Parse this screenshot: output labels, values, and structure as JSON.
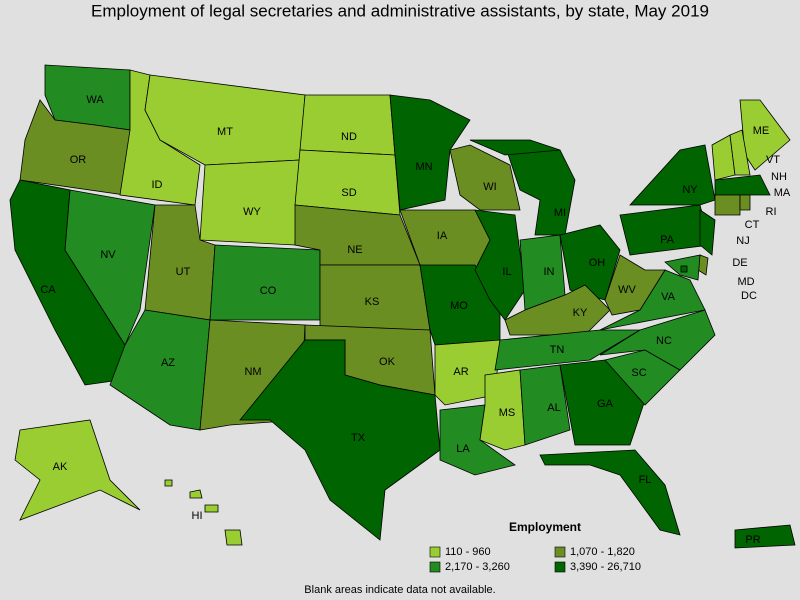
{
  "title": "Employment of legal secretaries and administrative assistants, by state, May 2019",
  "legend": {
    "title": "Employment",
    "items": [
      {
        "label": "110 - 960",
        "color": "#9acd32"
      },
      {
        "label": "1,070 - 1,820",
        "color": "#6b8e23"
      },
      {
        "label": "2,170 - 3,260",
        "color": "#228b22"
      },
      {
        "label": "3,390 - 26,710",
        "color": "#006400"
      }
    ]
  },
  "states": [
    {
      "label": "WA",
      "legend_item": 2
    },
    {
      "label": "OR",
      "legend_item": 1
    },
    {
      "label": "CA",
      "legend_item": 3
    },
    {
      "label": "NV",
      "legend_item": 2
    },
    {
      "label": "ID",
      "legend_item": 0
    },
    {
      "label": "MT",
      "legend_item": 0
    },
    {
      "label": "WY",
      "legend_item": 0
    },
    {
      "label": "UT",
      "legend_item": 1
    },
    {
      "label": "AZ",
      "legend_item": 2
    },
    {
      "label": "CO",
      "legend_item": 2
    },
    {
      "label": "NM",
      "legend_item": 1
    },
    {
      "label": "ND",
      "legend_item": 0
    },
    {
      "label": "SD",
      "legend_item": 0
    },
    {
      "label": "NE",
      "legend_item": 1
    },
    {
      "label": "KS",
      "legend_item": 1
    },
    {
      "label": "OK",
      "legend_item": 1
    },
    {
      "label": "TX",
      "legend_item": 3
    },
    {
      "label": "MN",
      "legend_item": 3
    },
    {
      "label": "IA",
      "legend_item": 1
    },
    {
      "label": "MO",
      "legend_item": 3
    },
    {
      "label": "AR",
      "legend_item": 0
    },
    {
      "label": "LA",
      "legend_item": 2
    },
    {
      "label": "WI",
      "legend_item": 1
    },
    {
      "label": "IL",
      "legend_item": 3
    },
    {
      "label": "MI",
      "legend_item": 3
    },
    {
      "label": "IN",
      "legend_item": 2
    },
    {
      "label": "OH",
      "legend_item": 3
    },
    {
      "label": "KY",
      "legend_item": 1
    },
    {
      "label": "TN",
      "legend_item": 2
    },
    {
      "label": "MS",
      "legend_item": 0
    },
    {
      "label": "AL",
      "legend_item": 2
    },
    {
      "label": "GA",
      "legend_item": 3
    },
    {
      "label": "FL",
      "legend_item": 3
    },
    {
      "label": "SC",
      "legend_item": 2
    },
    {
      "label": "NC",
      "legend_item": 2
    },
    {
      "label": "VA",
      "legend_item": 2
    },
    {
      "label": "WV",
      "legend_item": 1
    },
    {
      "label": "PA",
      "legend_item": 3
    },
    {
      "label": "NY",
      "legend_item": 3
    },
    {
      "label": "NJ",
      "legend_item": 3
    },
    {
      "label": "DE",
      "legend_item": 1
    },
    {
      "label": "MD",
      "legend_item": 2
    },
    {
      "label": "DC",
      "legend_item": 3
    },
    {
      "label": "ME",
      "legend_item": 0
    },
    {
      "label": "VT",
      "legend_item": 0
    },
    {
      "label": "NH",
      "legend_item": 0
    },
    {
      "label": "MA",
      "legend_item": 3
    },
    {
      "label": "CT",
      "legend_item": 1
    },
    {
      "label": "RI",
      "legend_item": 1
    },
    {
      "label": "AK",
      "legend_item": 0
    },
    {
      "label": "HI",
      "legend_item": 0
    },
    {
      "label": "PR",
      "legend_item": 3
    }
  ],
  "footnote": "Blank areas indicate data not available."
}
